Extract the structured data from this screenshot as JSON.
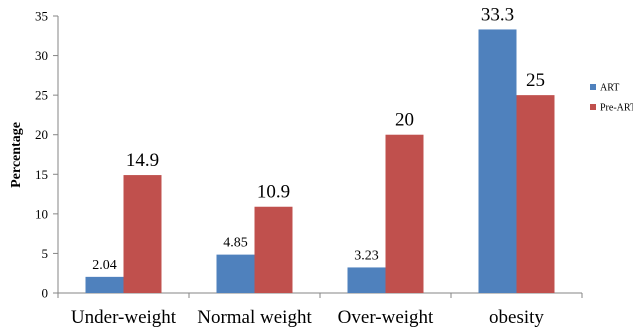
{
  "chart_data": {
    "type": "bar",
    "title": "",
    "xlabel": "",
    "ylabel": "Percentage",
    "ylim": [
      0,
      35
    ],
    "yticks": [
      0,
      5,
      10,
      15,
      20,
      25,
      30,
      35
    ],
    "grid": false,
    "legend_position": "right",
    "categories": [
      "Under-weight",
      "Normal weight",
      "Over-weight",
      "obesity"
    ],
    "series": [
      {
        "name": "ART",
        "color": "#4f81bd",
        "values": [
          2.04,
          4.85,
          3.23,
          33.3
        ],
        "labels": [
          "2.04",
          "4.85",
          "3.23",
          "33.3"
        ]
      },
      {
        "name": "Pre-ART",
        "color": "#c0504d",
        "values": [
          14.9,
          10.9,
          20,
          25
        ],
        "labels": [
          "14.9",
          "10.9",
          "20",
          "25"
        ]
      }
    ]
  }
}
